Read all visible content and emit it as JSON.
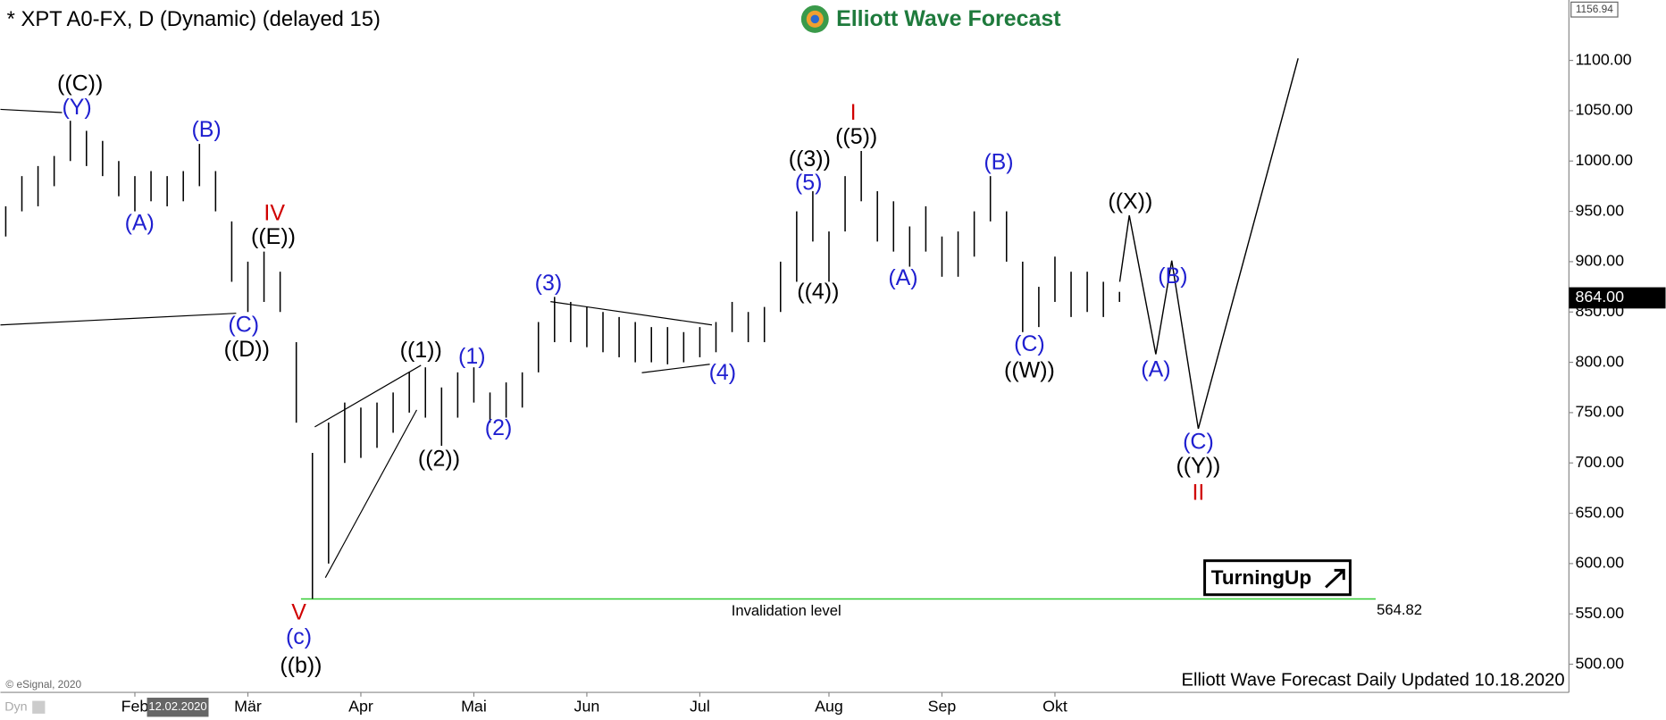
{
  "chart_data": {
    "type": "ohlc",
    "title": "* XPT A0-FX, D (Dynamic) (delayed 15)",
    "brand": "Elliott Wave Forecast",
    "footer": "Elliott Wave Forecast Daily Updated 10.18.2020",
    "copyright": "© eSignal, 2020",
    "cursor_date": "12.02.2020",
    "chart_mode": "Dyn",
    "badge": "TurningUp",
    "color": "#000000",
    "categories": [
      null,
      null,
      null,
      null,
      null,
      null,
      null,
      null,
      "Feb",
      null,
      null,
      null,
      null,
      null,
      null,
      "Mär",
      null,
      null,
      null,
      null,
      null,
      null,
      "Apr",
      null,
      null,
      null,
      null,
      null,
      null,
      "Mai",
      null,
      null,
      null,
      null,
      null,
      null,
      "Jun",
      null,
      null,
      null,
      null,
      null,
      null,
      "Jul",
      null,
      null,
      null,
      null,
      null,
      null,
      null,
      "Aug",
      null,
      null,
      null,
      null,
      null,
      null,
      "Sep",
      null,
      null,
      null,
      null,
      null,
      null,
      "Okt",
      null,
      null,
      null,
      null
    ],
    "high": [
      955,
      985,
      995,
      1005,
      1040,
      1030,
      1020,
      1000,
      985,
      990,
      985,
      990,
      1017,
      990,
      940,
      900,
      910,
      890,
      820,
      710,
      740,
      760,
      755,
      760,
      770,
      790,
      795,
      775,
      790,
      795,
      770,
      780,
      790,
      840,
      865,
      860,
      855,
      850,
      845,
      840,
      835,
      835,
      830,
      835,
      840,
      860,
      850,
      855,
      900,
      950,
      970,
      930,
      985,
      1010,
      970,
      960,
      935,
      955,
      925,
      930,
      950,
      985,
      950,
      900,
      875,
      905,
      890,
      890,
      880,
      870
    ],
    "low": [
      925,
      950,
      955,
      975,
      1000,
      995,
      985,
      965,
      950,
      960,
      955,
      960,
      975,
      950,
      880,
      850,
      860,
      850,
      740,
      565,
      600,
      700,
      705,
      715,
      730,
      750,
      745,
      717,
      745,
      760,
      740,
      745,
      755,
      790,
      820,
      820,
      815,
      810,
      805,
      800,
      800,
      798,
      800,
      805,
      810,
      830,
      820,
      820,
      850,
      880,
      920,
      880,
      930,
      960,
      920,
      910,
      895,
      910,
      885,
      885,
      905,
      940,
      900,
      830,
      835,
      860,
      845,
      850,
      845,
      860
    ],
    "ylim": [
      472,
      1160
    ],
    "yticks": [
      {
        "value": 500,
        "label": "500.00"
      },
      {
        "value": 550,
        "label": "550.00"
      },
      {
        "value": 600,
        "label": "600.00"
      },
      {
        "value": 650,
        "label": "650.00"
      },
      {
        "value": 700,
        "label": "700.00"
      },
      {
        "value": 750,
        "label": "750.00"
      },
      {
        "value": 800,
        "label": "800.00"
      },
      {
        "value": 850,
        "label": "850.00"
      },
      {
        "value": 900,
        "label": "900.00"
      },
      {
        "value": 950,
        "label": "950.00"
      },
      {
        "value": 1000,
        "label": "1000.00"
      },
      {
        "value": 1050,
        "label": "1050.00"
      },
      {
        "value": 1100,
        "label": "1100.00"
      }
    ],
    "last_price": {
      "value": 864,
      "label": "864.00"
    },
    "top_price": 1156.94,
    "invalidation": {
      "text": "Invalidation level",
      "value": 564.82,
      "color": "#33cc33"
    },
    "projection": {
      "values": [
        880,
        946,
        808,
        901,
        734,
        1102
      ],
      "color": "#000000"
    },
    "wave_labels": [
      {
        "text": "((C))",
        "color": "#000000"
      },
      {
        "text": "(Y)",
        "color": "#1f1fd0"
      },
      {
        "text": "(B)",
        "color": "#1f1fd0"
      },
      {
        "text": "(A)",
        "color": "#1f1fd0"
      },
      {
        "text": "IV",
        "color": "#d00000"
      },
      {
        "text": "((E))",
        "color": "#000000"
      },
      {
        "text": "(C)",
        "color": "#1f1fd0"
      },
      {
        "text": "((D))",
        "color": "#000000"
      },
      {
        "text": "V",
        "color": "#d00000"
      },
      {
        "text": "(c)",
        "color": "#1f1fd0"
      },
      {
        "text": "((b))",
        "color": "#000000"
      },
      {
        "text": "((1))",
        "color": "#000000"
      },
      {
        "text": "((2))",
        "color": "#000000"
      },
      {
        "text": "(1)",
        "color": "#1f1fd0"
      },
      {
        "text": "(2)",
        "color": "#1f1fd0"
      },
      {
        "text": "(3)",
        "color": "#1f1fd0"
      },
      {
        "text": "(4)",
        "color": "#1f1fd0"
      },
      {
        "text": "(5)",
        "color": "#1f1fd0"
      },
      {
        "text": "((3))",
        "color": "#000000"
      },
      {
        "text": "((4))",
        "color": "#000000"
      },
      {
        "text": "I",
        "color": "#d00000"
      },
      {
        "text": "((5))",
        "color": "#000000"
      },
      {
        "text": "(A)",
        "color": "#1f1fd0"
      },
      {
        "text": "(B)",
        "color": "#1f1fd0"
      },
      {
        "text": "(C)",
        "color": "#1f1fd0"
      },
      {
        "text": "((W))",
        "color": "#000000"
      },
      {
        "text": "((X))",
        "color": "#000000"
      },
      {
        "text": "(B)",
        "color": "#1f1fd0"
      },
      {
        "text": "(A)",
        "color": "#1f1fd0"
      },
      {
        "text": "(C)",
        "color": "#1f1fd0"
      },
      {
        "text": "((Y))",
        "color": "#000000"
      },
      {
        "text": "II",
        "color": "#d00000"
      }
    ]
  }
}
